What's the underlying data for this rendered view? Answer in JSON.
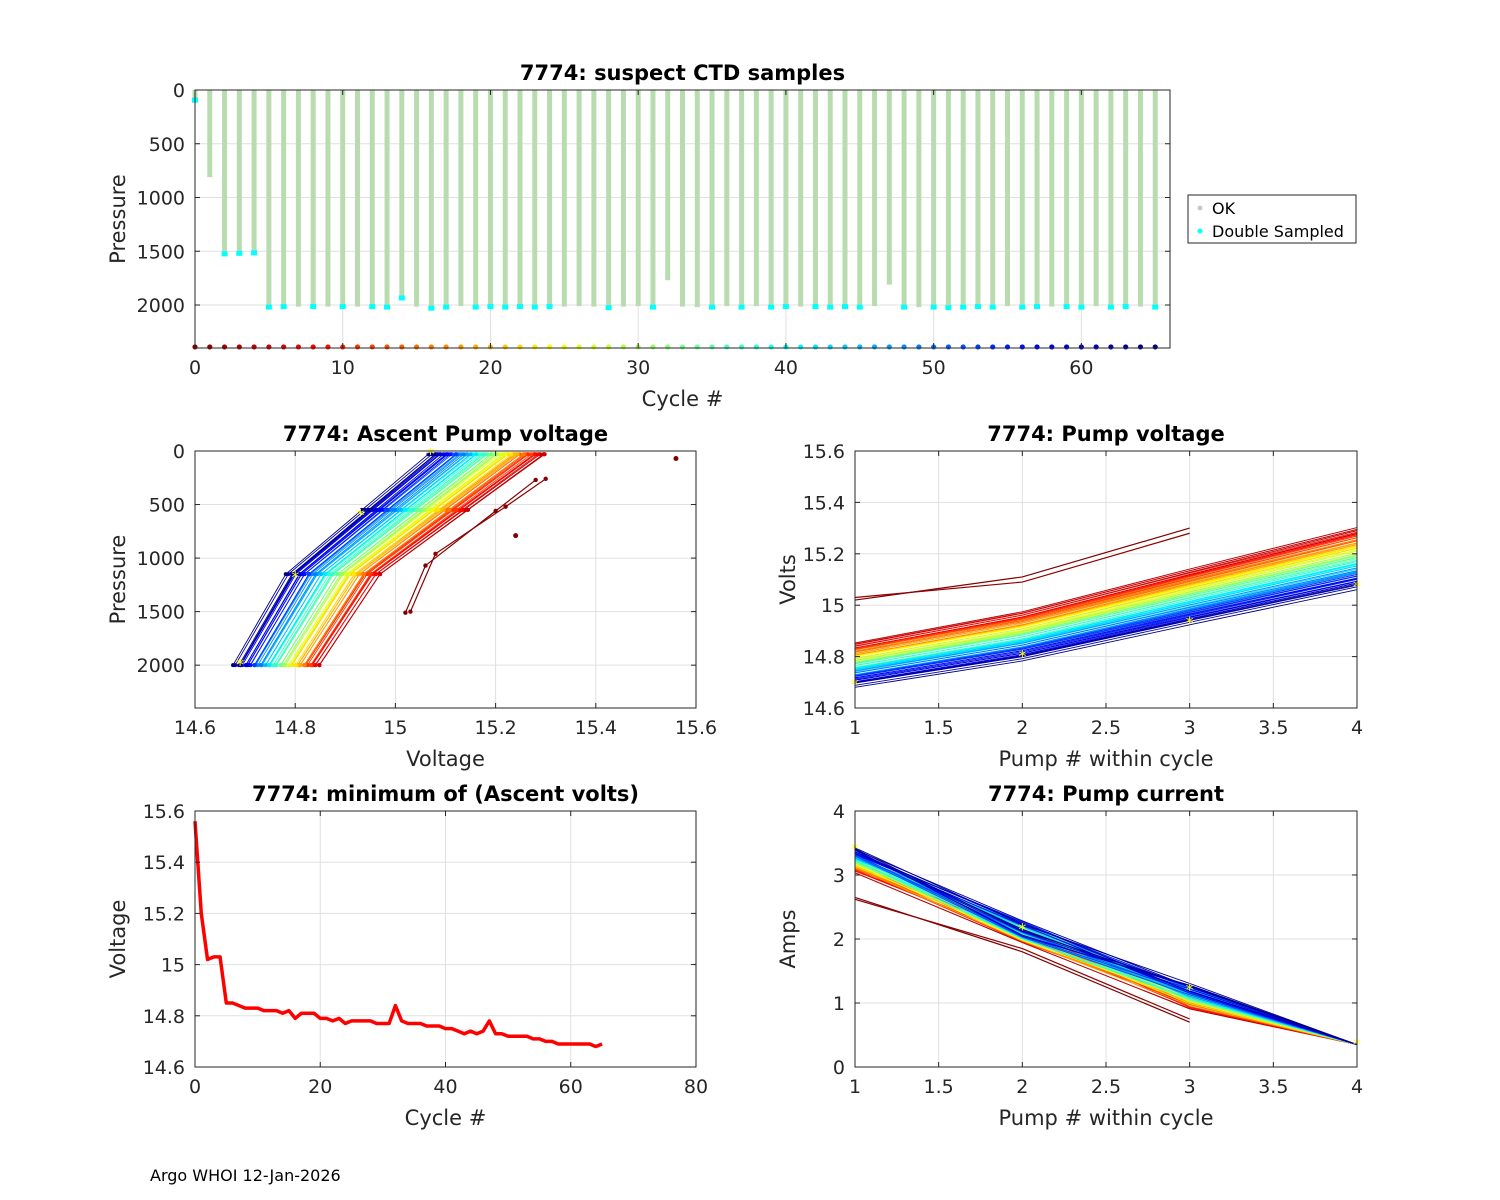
{
  "footer": "Argo WHOI 12-Jan-2026",
  "colors": {
    "ok": "#b8dcb0",
    "ok_marker": "#c8c8c8",
    "double": "#00ffff",
    "highlight": "#ffff00",
    "min_line": "#ff0000",
    "grid": "#e0e0e0",
    "axis": "#262626"
  },
  "chart_data": [
    {
      "id": "suspect",
      "type": "scatter",
      "title": "7774: suspect CTD samples",
      "xlabel": "Cycle #",
      "ylabel": "Pressure",
      "xlim": [
        0,
        66
      ],
      "ylim": [
        0,
        2400
      ],
      "y_reversed": true,
      "xticks": [
        0,
        10,
        20,
        30,
        40,
        50,
        60
      ],
      "yticks": [
        0,
        500,
        1000,
        1500,
        2000
      ],
      "legend": {
        "position": "outside-right",
        "entries": [
          "OK",
          "Double Sampled"
        ]
      },
      "cycles": [
        0,
        1,
        2,
        3,
        4,
        5,
        6,
        7,
        8,
        9,
        10,
        11,
        12,
        13,
        14,
        15,
        16,
        17,
        18,
        19,
        20,
        21,
        22,
        23,
        24,
        25,
        26,
        27,
        28,
        29,
        30,
        31,
        32,
        33,
        34,
        35,
        36,
        37,
        38,
        39,
        40,
        41,
        42,
        43,
        44,
        45,
        46,
        47,
        48,
        49,
        50,
        51,
        52,
        53,
        54,
        55,
        56,
        57,
        58,
        59,
        60,
        61,
        62,
        63,
        64,
        65
      ],
      "profile_max_pressure": [
        90,
        810,
        1520,
        1515,
        1510,
        2015,
        2010,
        2015,
        2010,
        2015,
        2010,
        2015,
        2010,
        2015,
        1930,
        2015,
        2025,
        2015,
        2010,
        2015,
        2010,
        2015,
        2010,
        2015,
        2010,
        2015,
        2010,
        2015,
        2020,
        2015,
        2010,
        2015,
        1770,
        2015,
        2020,
        2015,
        2010,
        2015,
        2010,
        2015,
        2010,
        2015,
        2010,
        2015,
        2010,
        2015,
        2010,
        1810,
        2015,
        2020,
        2015,
        2020,
        2015,
        2010,
        2015,
        2010,
        2015,
        2010,
        2015,
        2010,
        2015,
        2010,
        2015,
        2010,
        2015,
        2015
      ],
      "double_sampled_cycles": [
        0,
        2,
        3,
        4,
        5,
        6,
        8,
        10,
        12,
        13,
        14,
        16,
        17,
        19,
        20,
        21,
        22,
        23,
        24,
        28,
        31,
        35,
        37,
        39,
        40,
        42,
        43,
        44,
        45,
        48,
        50,
        51,
        52,
        53,
        54,
        56,
        57,
        59,
        60,
        62,
        63,
        65
      ],
      "cycle_markers_pressure": 2390
    },
    {
      "id": "ascent",
      "type": "line",
      "title": "7774: Ascent Pump voltage",
      "xlabel": "Voltage",
      "ylabel": "Pressure",
      "xlim": [
        14.6,
        15.6
      ],
      "ylim": [
        0,
        2400
      ],
      "y_reversed": true,
      "xticks": [
        14.6,
        14.8,
        15,
        15.2,
        15.4,
        15.6
      ],
      "yticks": [
        0,
        500,
        1000,
        1500,
        2000
      ],
      "pump_pressures": [
        2000,
        1150,
        550,
        30
      ],
      "series_summary": "one line per cycle, coloured by cycle number (jet colormap), voltage rising as pressure falls",
      "v2000_range": [
        14.68,
        14.85
      ],
      "v0_range": [
        15.07,
        15.3
      ],
      "outliers": [
        {
          "voltage": 15.56,
          "pressure": 70
        },
        {
          "voltage": 15.24,
          "pressure": 790
        }
      ],
      "early_cycles": [
        {
          "v": [
            15.02,
            15.06,
            15.2,
            15.28
          ],
          "p": [
            1510,
            1070,
            560,
            270
          ]
        },
        {
          "v": [
            15.03,
            15.08,
            15.22,
            15.3
          ],
          "p": [
            1500,
            960,
            520,
            260
          ]
        }
      ]
    },
    {
      "id": "pumpv",
      "type": "line",
      "title": "7774: Pump voltage",
      "xlabel": "Pump # within cycle",
      "ylabel": "Volts",
      "xlim": [
        1,
        4
      ],
      "ylim": [
        14.6,
        15.6
      ],
      "xticks": [
        1,
        1.5,
        2,
        2.5,
        3,
        3.5,
        4
      ],
      "yticks": [
        14.6,
        14.8,
        15,
        15.2,
        15.4,
        15.6
      ],
      "pump_numbers": [
        1,
        2,
        3,
        4
      ],
      "early_cycles": [
        {
          "v": [
            15.02,
            15.11,
            15.3
          ]
        },
        {
          "v": [
            15.03,
            15.09,
            15.28
          ]
        }
      ],
      "series_summary": "per-cycle line from pump 1 to pump 4, voltage drops with cycle number",
      "latest_cycle": {
        "v": [
          14.69,
          14.8,
          14.93,
          15.07
        ]
      }
    },
    {
      "id": "minv",
      "type": "line",
      "title": "7774: minimum of (Ascent volts)",
      "xlabel": "Cycle #",
      "ylabel": "Voltage",
      "xlim": [
        0,
        80
      ],
      "ylim": [
        14.6,
        15.6
      ],
      "xticks": [
        0,
        20,
        40,
        60,
        80
      ],
      "yticks": [
        14.6,
        14.8,
        15,
        15.2,
        15.4,
        15.6
      ],
      "x": [
        0,
        1,
        2,
        3,
        4,
        5,
        6,
        7,
        8,
        9,
        10,
        11,
        12,
        13,
        14,
        15,
        16,
        17,
        18,
        19,
        20,
        21,
        22,
        23,
        24,
        25,
        26,
        27,
        28,
        29,
        30,
        31,
        32,
        33,
        34,
        35,
        36,
        37,
        38,
        39,
        40,
        41,
        42,
        43,
        44,
        45,
        46,
        47,
        48,
        49,
        50,
        51,
        52,
        53,
        54,
        55,
        56,
        57,
        58,
        59,
        60,
        61,
        62,
        63,
        64,
        65
      ],
      "values": [
        15.56,
        15.2,
        15.02,
        15.03,
        15.03,
        14.85,
        14.85,
        14.84,
        14.83,
        14.83,
        14.83,
        14.82,
        14.82,
        14.82,
        14.81,
        14.82,
        14.79,
        14.81,
        14.81,
        14.81,
        14.79,
        14.79,
        14.78,
        14.79,
        14.77,
        14.78,
        14.78,
        14.78,
        14.78,
        14.77,
        14.77,
        14.77,
        14.84,
        14.78,
        14.77,
        14.77,
        14.77,
        14.76,
        14.76,
        14.76,
        14.75,
        14.75,
        14.74,
        14.73,
        14.74,
        14.73,
        14.74,
        14.78,
        14.73,
        14.73,
        14.72,
        14.72,
        14.72,
        14.72,
        14.71,
        14.71,
        14.7,
        14.7,
        14.69,
        14.69,
        14.69,
        14.69,
        14.69,
        14.69,
        14.68,
        14.69
      ]
    },
    {
      "id": "pumpc",
      "type": "line",
      "title": "7774: Pump current",
      "xlabel": "Pump # within cycle",
      "ylabel": "Amps",
      "xlim": [
        1,
        4
      ],
      "ylim": [
        0,
        4
      ],
      "xticks": [
        1,
        1.5,
        2,
        2.5,
        3,
        3.5,
        4
      ],
      "yticks": [
        0,
        1,
        2,
        3,
        4
      ],
      "pump_numbers": [
        1,
        2,
        3,
        4
      ],
      "early_cycles": [
        {
          "a": [
            2.65,
            1.8,
            0.7
          ]
        },
        {
          "a": [
            2.62,
            1.85,
            0.75
          ]
        }
      ],
      "series_summary": "per-cycle current decreasing from about 3.4 A at pump 1 to about 0.35 A at pump 4",
      "latest_cycle": {
        "a": [
          3.4,
          2.15,
          1.2,
          0.35
        ]
      }
    }
  ]
}
